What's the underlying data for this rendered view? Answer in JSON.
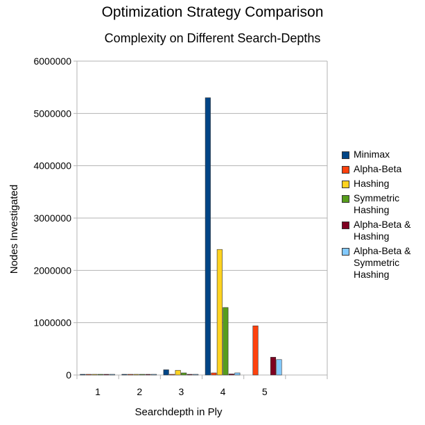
{
  "chart_data": {
    "type": "bar",
    "title": "Optimization Strategy Comparison",
    "subtitle": "Complexity on Different Search-Depths",
    "xlabel": "Searchdepth in Ply",
    "ylabel": "Nodes Investigated",
    "ylim": [
      0,
      6000000
    ],
    "yticks": [
      "0",
      "1000000",
      "2000000",
      "3000000",
      "4000000",
      "5000000",
      "6000000"
    ],
    "categories": [
      "1",
      "2",
      "3",
      "4",
      "5",
      ""
    ],
    "grid": true,
    "legend_position": "right",
    "series": [
      {
        "name": "Minimax",
        "color": "#004586",
        "values": [
          10,
          500,
          100000,
          5300000,
          null,
          null
        ]
      },
      {
        "name": "Alpha-Beta",
        "color": "#ff420e",
        "values": [
          10,
          100,
          5000,
          40000,
          940000,
          null
        ]
      },
      {
        "name": "Hashing",
        "color": "#ffd320",
        "values": [
          10,
          300,
          90000,
          2400000,
          null,
          null
        ]
      },
      {
        "name": "Symmetric Hashing",
        "color": "#579d1c",
        "values": [
          10,
          200,
          40000,
          1290000,
          null,
          null
        ]
      },
      {
        "name": "Alpha-Beta & Hashing",
        "color": "#7e0021",
        "values": [
          10,
          50,
          2000,
          20000,
          340000,
          null
        ]
      },
      {
        "name": "Alpha-Beta & Symmetric Hashing",
        "color": "#83caff",
        "values": [
          10,
          50,
          1000,
          40000,
          295000,
          null
        ]
      }
    ]
  }
}
